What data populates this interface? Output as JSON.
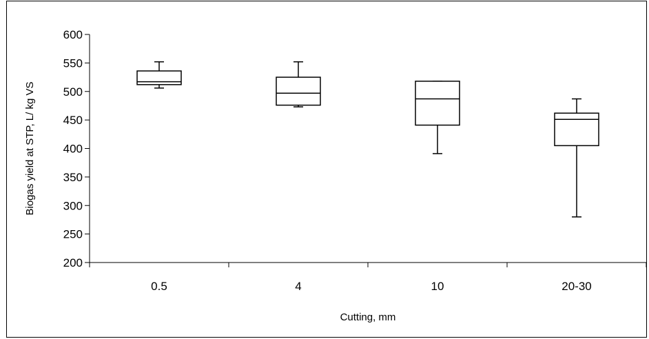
{
  "chart_data": {
    "type": "box",
    "title": "",
    "xlabel": "Cutting, mm",
    "ylabel": "Biogas yield at STP, L/ kg VS",
    "ylim": [
      200,
      600
    ],
    "yticks": [
      200,
      250,
      300,
      350,
      400,
      450,
      500,
      550,
      600
    ],
    "grid": false,
    "legend": "none",
    "categories": [
      "0.5",
      "4",
      "10",
      "20-30"
    ],
    "boxes": [
      {
        "category": "0.5",
        "min": 506,
        "q1": 512,
        "median": 517,
        "q3": 536,
        "max": 552
      },
      {
        "category": "4",
        "min": 473,
        "q1": 476,
        "median": 497,
        "q3": 525,
        "max": 552
      },
      {
        "category": "10",
        "min": 391,
        "q1": 441,
        "median": 487,
        "q3": 518,
        "max": 518
      },
      {
        "category": "20-30",
        "min": 280,
        "q1": 405,
        "median": 451,
        "q3": 462,
        "max": 487
      }
    ],
    "colors": {
      "box_fill": "#ffffff",
      "stroke": "#000000"
    }
  }
}
